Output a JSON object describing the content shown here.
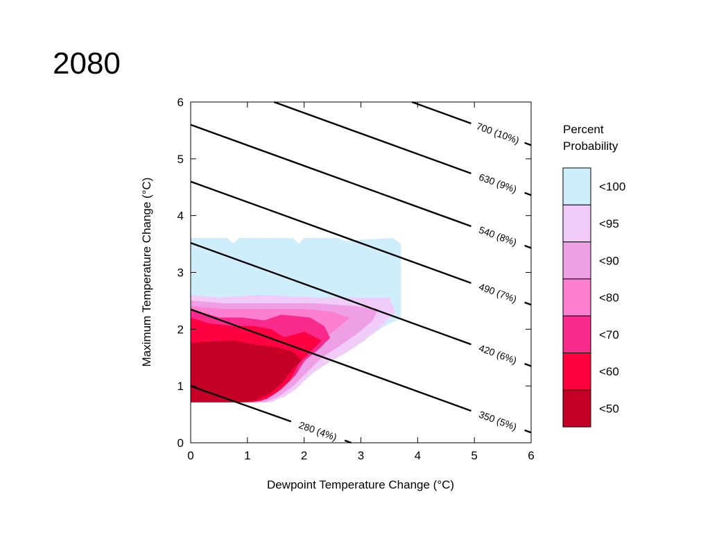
{
  "slide": {
    "title": "2080"
  },
  "chart_data": {
    "type": "contour",
    "xlabel": "Dewpoint Temperature Change (°C)",
    "ylabel": "Maximum Temperature Change (°C)",
    "xlim": [
      0,
      6
    ],
    "ylim": [
      0,
      6
    ],
    "xticks": [
      0,
      1,
      2,
      3,
      4,
      5,
      6
    ],
    "yticks": [
      0,
      1,
      2,
      3,
      4,
      5,
      6
    ],
    "legend": {
      "title_line1": "Percent",
      "title_line2": "Probability",
      "placement": "right",
      "levels": [
        {
          "label": "<100",
          "color": "#cdeefa"
        },
        {
          "label": "<95",
          "color": "#f2ccf9"
        },
        {
          "label": "<90",
          "color": "#ef9fe6"
        },
        {
          "label": "<80",
          "color": "#fc7fd0"
        },
        {
          "label": "<70",
          "color": "#f82a8c"
        },
        {
          "label": "<60",
          "color": "#ff0040"
        },
        {
          "label": "<50",
          "color": "#c40027"
        }
      ]
    },
    "isolines": [
      {
        "label": "280 (4%)",
        "points": [
          [
            0,
            1.0
          ],
          [
            2.83,
            0.0
          ]
        ]
      },
      {
        "label": "350 (5%)",
        "points": [
          [
            0,
            2.35
          ],
          [
            6,
            0.18
          ]
        ]
      },
      {
        "label": "420 (6%)",
        "points": [
          [
            0,
            3.52
          ],
          [
            6,
            1.35
          ]
        ]
      },
      {
        "label": "490 (7%)",
        "points": [
          [
            0,
            4.6
          ],
          [
            6,
            2.43
          ]
        ]
      },
      {
        "label": "540 (8%)",
        "points": [
          [
            0,
            5.6
          ],
          [
            6,
            3.43
          ]
        ]
      },
      {
        "label": "630 (9%)",
        "points": [
          [
            1.47,
            6.0
          ],
          [
            6,
            4.36
          ]
        ]
      },
      {
        "label": "700 (10%)",
        "points": [
          [
            3.9,
            6.0
          ],
          [
            6,
            5.24
          ]
        ]
      }
    ],
    "regions": [
      {
        "level": "<100",
        "polygon": [
          [
            0,
            3.6
          ],
          [
            0.65,
            3.6
          ],
          [
            0.75,
            3.5
          ],
          [
            0.85,
            3.6
          ],
          [
            1.8,
            3.6
          ],
          [
            1.9,
            3.5
          ],
          [
            2.0,
            3.6
          ],
          [
            2.6,
            3.6
          ],
          [
            2.7,
            3.55
          ],
          [
            3.55,
            3.6
          ],
          [
            3.7,
            3.5
          ],
          [
            3.7,
            2.2
          ],
          [
            3.4,
            2.05
          ],
          [
            3.1,
            1.85
          ],
          [
            2.9,
            1.75
          ],
          [
            2.75,
            1.6
          ],
          [
            2.3,
            1.35
          ],
          [
            2.0,
            1.1
          ],
          [
            1.8,
            0.95
          ],
          [
            1.6,
            0.85
          ],
          [
            1.45,
            0.72
          ],
          [
            0,
            0.72
          ]
        ]
      },
      {
        "level": "<95",
        "polygon": [
          [
            0,
            2.6
          ],
          [
            0.5,
            2.55
          ],
          [
            1.2,
            2.6
          ],
          [
            2.2,
            2.55
          ],
          [
            2.8,
            2.55
          ],
          [
            3.5,
            2.55
          ],
          [
            3.6,
            2.3
          ],
          [
            3.35,
            2.05
          ],
          [
            3.05,
            1.8
          ],
          [
            2.75,
            1.6
          ],
          [
            2.4,
            1.4
          ],
          [
            2.1,
            1.2
          ],
          [
            1.85,
            0.95
          ],
          [
            1.65,
            0.82
          ],
          [
            1.4,
            0.72
          ],
          [
            0,
            0.72
          ]
        ]
      },
      {
        "level": "<90",
        "polygon": [
          [
            0,
            2.5
          ],
          [
            0.6,
            2.45
          ],
          [
            1.4,
            2.45
          ],
          [
            2.2,
            2.45
          ],
          [
            2.9,
            2.4
          ],
          [
            3.3,
            2.35
          ],
          [
            3.2,
            2.15
          ],
          [
            2.9,
            1.9
          ],
          [
            2.6,
            1.7
          ],
          [
            2.3,
            1.5
          ],
          [
            2.05,
            1.25
          ],
          [
            1.8,
            1.0
          ],
          [
            1.55,
            0.82
          ],
          [
            1.3,
            0.72
          ],
          [
            0,
            0.72
          ]
        ]
      },
      {
        "level": "<80",
        "polygon": [
          [
            0,
            2.4
          ],
          [
            0.6,
            2.35
          ],
          [
            1.3,
            2.35
          ],
          [
            2.0,
            2.35
          ],
          [
            2.5,
            2.3
          ],
          [
            2.8,
            2.2
          ],
          [
            2.55,
            2.0
          ],
          [
            2.3,
            1.8
          ],
          [
            2.1,
            1.55
          ],
          [
            1.9,
            1.3
          ],
          [
            1.7,
            1.05
          ],
          [
            1.45,
            0.85
          ],
          [
            1.2,
            0.72
          ],
          [
            0,
            0.72
          ]
        ]
      },
      {
        "level": "<70",
        "polygon": [
          [
            0,
            2.35
          ],
          [
            0.5,
            2.2
          ],
          [
            0.9,
            2.2
          ],
          [
            1.3,
            2.15
          ],
          [
            1.6,
            2.25
          ],
          [
            2.1,
            2.2
          ],
          [
            2.35,
            2.05
          ],
          [
            2.45,
            1.85
          ],
          [
            2.25,
            1.65
          ],
          [
            2.0,
            1.45
          ],
          [
            1.85,
            1.2
          ],
          [
            1.6,
            0.95
          ],
          [
            1.35,
            0.78
          ],
          [
            1.1,
            0.72
          ],
          [
            0,
            0.72
          ]
        ]
      },
      {
        "level": "<60",
        "polygon": [
          [
            0,
            2.2
          ],
          [
            0.3,
            2.1
          ],
          [
            0.75,
            2.05
          ],
          [
            1.1,
            2.05
          ],
          [
            1.4,
            2.0
          ],
          [
            1.65,
            1.85
          ],
          [
            2.0,
            1.95
          ],
          [
            2.3,
            1.8
          ],
          [
            2.1,
            1.6
          ],
          [
            1.9,
            1.4
          ],
          [
            1.75,
            1.1
          ],
          [
            1.5,
            0.88
          ],
          [
            1.25,
            0.75
          ],
          [
            1.0,
            0.72
          ],
          [
            0,
            0.72
          ]
        ]
      },
      {
        "level": "<50",
        "polygon": [
          [
            0,
            1.75
          ],
          [
            0.4,
            1.78
          ],
          [
            0.75,
            1.8
          ],
          [
            1.15,
            1.72
          ],
          [
            1.5,
            1.68
          ],
          [
            1.8,
            1.6
          ],
          [
            1.95,
            1.45
          ],
          [
            1.75,
            1.25
          ],
          [
            1.6,
            1.05
          ],
          [
            1.4,
            0.88
          ],
          [
            1.15,
            0.76
          ],
          [
            0.95,
            0.72
          ],
          [
            0,
            0.72
          ]
        ]
      }
    ]
  }
}
